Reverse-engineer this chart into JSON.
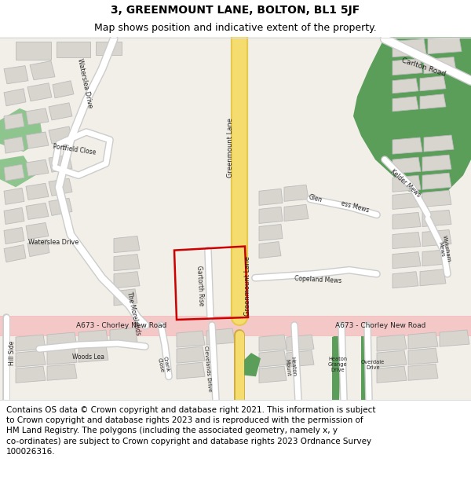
{
  "title_line1": "3, GREENMOUNT LANE, BOLTON, BL1 5JF",
  "title_line2": "Map shows position and indicative extent of the property.",
  "footer_text": "Contains OS data © Crown copyright and database right 2021. This information is subject\nto Crown copyright and database rights 2023 and is reproduced with the permission of\nHM Land Registry. The polygons (including the associated geometry, namely x, y\nco-ordinates) are subject to Crown copyright and database rights 2023 Ordnance Survey\n100026316.",
  "title_fontsize": 10,
  "subtitle_fontsize": 9,
  "footer_fontsize": 7.5,
  "bg_color": "#ffffff",
  "map_bg": "#f2efe9",
  "road_yellow": "#f5dc6e",
  "road_yellow_outline": "#e8c84a",
  "road_white": "#ffffff",
  "road_gray_outline": "#cccccc",
  "green_dark": "#5a9e5a",
  "green_med": "#7ab87a",
  "building_fill": "#d8d5cf",
  "building_outline": "#bbbbbb",
  "plot_color": "#cc0000",
  "a673_pink": "#f5c0c0",
  "a673_pink_alpha": 0.5
}
